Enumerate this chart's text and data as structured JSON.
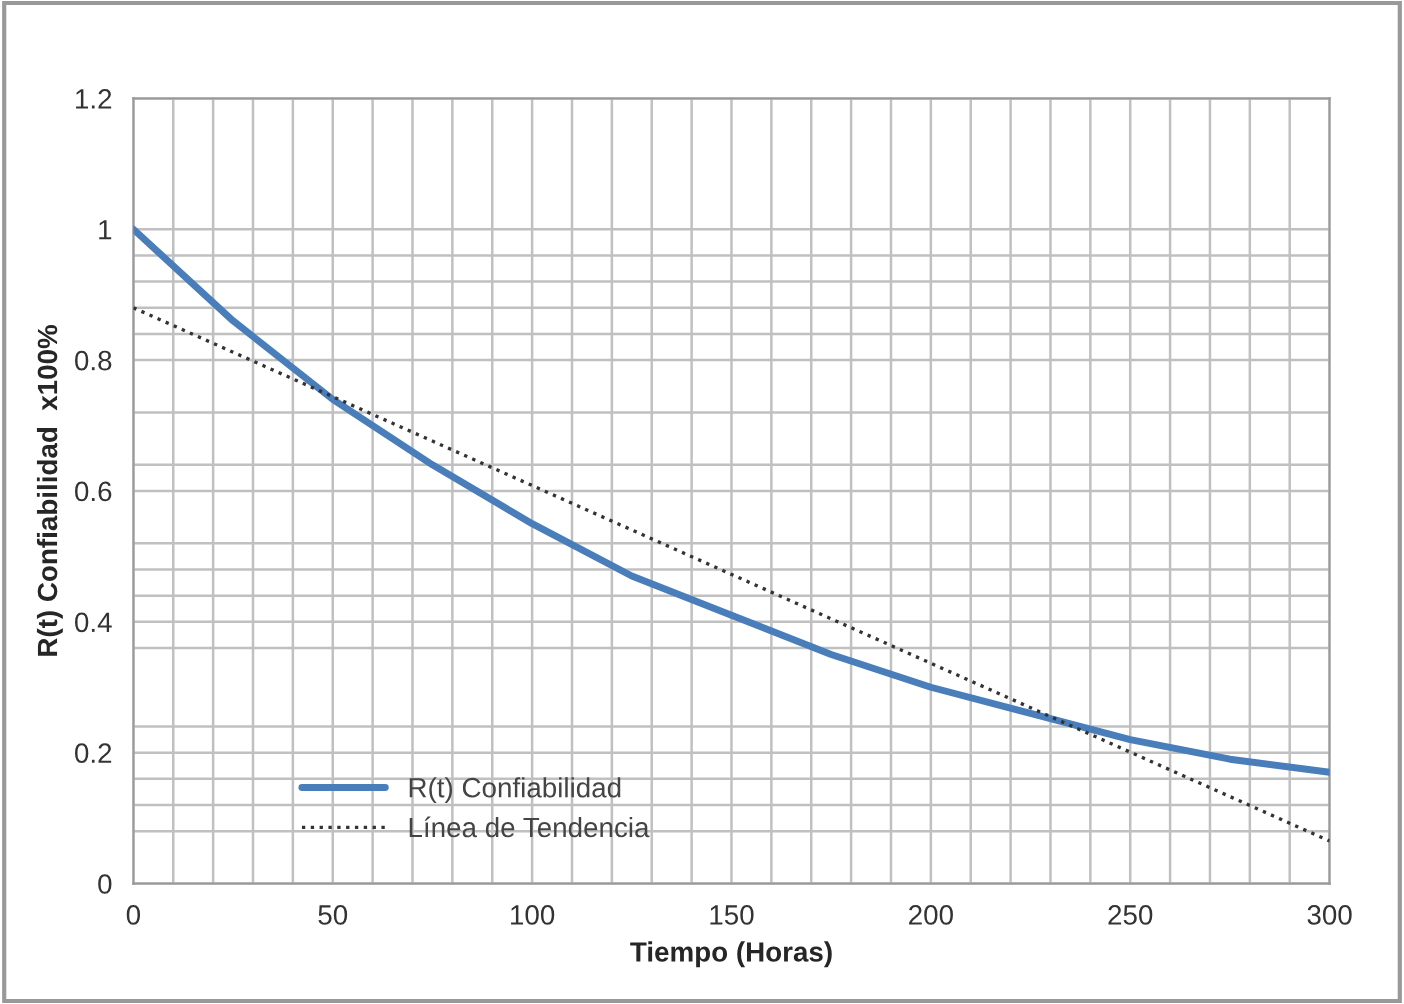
{
  "chart_data": {
    "type": "line",
    "xlabel": "Tiempo (Horas)",
    "ylabel": "R(t) Confiabilidad  x100%",
    "x": [
      0,
      25,
      50,
      75,
      100,
      125,
      150,
      175,
      200,
      225,
      250,
      275,
      300
    ],
    "series": [
      {
        "name": "R(t) Confiabilidad",
        "color": "#4a7ebb",
        "line_style": "solid",
        "values": [
          1.0,
          0.86,
          0.74,
          0.64,
          0.55,
          0.47,
          0.41,
          0.35,
          0.3,
          0.26,
          0.22,
          0.19,
          0.17
        ]
      },
      {
        "name": "Línea de Tendencia",
        "type": "line",
        "color": "#333333",
        "line_style": "dotted",
        "x": [
          0,
          300
        ],
        "values": [
          0.88,
          0.065
        ]
      }
    ],
    "xlim": [
      0,
      300
    ],
    "ylim": [
      0,
      1.2
    ],
    "xticks": [
      0,
      {
        "value": 10,
        "label": null
      },
      {
        "value": 20,
        "label": null
      },
      {
        "value": 30,
        "label": null
      },
      {
        "value": 40,
        "label": null
      },
      50,
      {
        "value": 60,
        "label": null
      },
      {
        "value": 70,
        "label": null
      },
      {
        "value": 80,
        "label": null
      },
      {
        "value": 90,
        "label": null
      },
      100,
      {
        "value": 110,
        "label": null
      },
      {
        "value": 120,
        "label": null
      },
      {
        "value": 130,
        "label": null
      },
      {
        "value": 140,
        "label": null
      },
      150,
      {
        "value": 160,
        "label": null
      },
      {
        "value": 170,
        "label": null
      },
      {
        "value": 180,
        "label": null
      },
      {
        "value": 190,
        "label": null
      },
      200,
      {
        "value": 210,
        "label": null
      },
      {
        "value": 220,
        "label": null
      },
      {
        "value": 230,
        "label": null
      },
      {
        "value": 240,
        "label": null
      },
      250,
      {
        "value": 260,
        "label": null
      },
      {
        "value": 270,
        "label": null
      },
      {
        "value": 280,
        "label": null
      },
      {
        "value": 290,
        "label": null
      },
      300
    ],
    "yticks": [
      0,
      {
        "value": 0.08,
        "label": null
      },
      {
        "value": 0.12,
        "label": null
      },
      {
        "value": 0.16,
        "label": null
      },
      0.2,
      {
        "value": 0.24,
        "label": null
      },
      {
        "value": 0.36,
        "label": null
      },
      0.4,
      {
        "value": 0.44,
        "label": null
      },
      {
        "value": 0.48,
        "label": null
      },
      {
        "value": 0.52,
        "label": null
      },
      0.6,
      {
        "value": 0.64,
        "label": null
      },
      {
        "value": 0.72,
        "label": null
      },
      0.8,
      {
        "value": 0.84,
        "label": null
      },
      {
        "value": 0.88,
        "label": null
      },
      {
        "value": 0.92,
        "label": null
      },
      {
        "value": 0.96,
        "label": null
      },
      1,
      1.2
    ],
    "grid": true,
    "legend": "bottom left",
    "marker": "none"
  }
}
